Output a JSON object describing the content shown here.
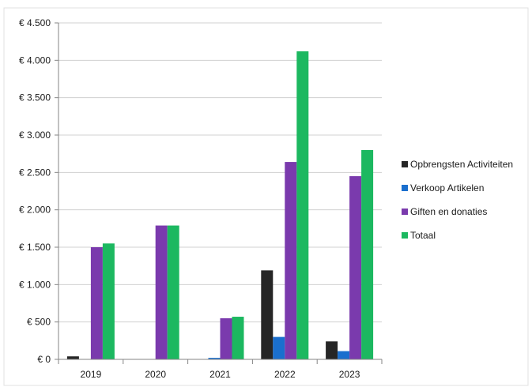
{
  "chart_data": {
    "type": "bar",
    "title": "",
    "xlabel": "",
    "ylabel": "",
    "categories": [
      "2019",
      "2020",
      "2021",
      "2022",
      "2023"
    ],
    "ylim": [
      0,
      4500
    ],
    "yticks": [
      0,
      500,
      1000,
      1500,
      2000,
      2500,
      3000,
      3500,
      4000,
      4500
    ],
    "ytick_labels": [
      "€ 0",
      "€ 500",
      "€ 1.000",
      "€ 1.500",
      "€ 2.000",
      "€ 2.500",
      "€ 3.000",
      "€ 3.500",
      "€ 4.000",
      "€ 4.500"
    ],
    "grid": true,
    "legend_position": "right",
    "series": [
      {
        "name": "Opbrengsten Activiteiten",
        "color": "#262626",
        "values": [
          40,
          0,
          0,
          1190,
          240
        ]
      },
      {
        "name": "Verkoop Artikelen",
        "color": "#1a6fce",
        "values": [
          0,
          0,
          20,
          300,
          110
        ]
      },
      {
        "name": "Giften en donaties",
        "color": "#7a3aad",
        "values": [
          1500,
          1790,
          550,
          2640,
          2450
        ]
      },
      {
        "name": "Totaal",
        "color": "#1cb860",
        "values": [
          1550,
          1790,
          570,
          4120,
          2800
        ]
      }
    ]
  }
}
